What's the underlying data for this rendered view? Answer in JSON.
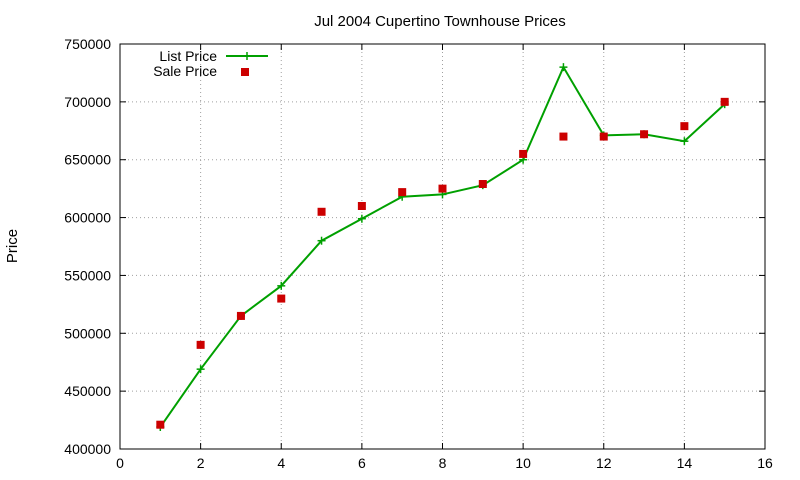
{
  "chart_data": {
    "type": "line",
    "title": "Jul 2004 Cupertino Townhouse Prices",
    "xlabel": "",
    "ylabel": "Price",
    "xlim": [
      0,
      16
    ],
    "ylim": [
      400000,
      750000
    ],
    "x_ticks": [
      "0",
      "2",
      "4",
      "6",
      "8",
      "10",
      "12",
      "14",
      "16"
    ],
    "y_ticks": [
      "400000",
      "450000",
      "500000",
      "550000",
      "600000",
      "650000",
      "700000",
      "750000"
    ],
    "grid": true,
    "legend_position": "top-left",
    "series": [
      {
        "name": "List Price",
        "style": "line+cross",
        "color": "#00a000",
        "x": [
          1,
          2,
          3,
          4,
          5,
          6,
          7,
          8,
          9,
          10,
          11,
          12,
          13,
          14,
          15
        ],
        "y": [
          419000,
          469000,
          515000,
          541000,
          580000,
          599000,
          618000,
          620000,
          628000,
          650000,
          730000,
          671000,
          672000,
          666000,
          698000
        ]
      },
      {
        "name": "Sale Price",
        "style": "square",
        "color": "#cc0000",
        "x": [
          1,
          2,
          3,
          4,
          5,
          6,
          7,
          8,
          9,
          10,
          11,
          12,
          13,
          14,
          15
        ],
        "y": [
          421000,
          490000,
          515000,
          530000,
          605000,
          610000,
          622000,
          625000,
          629000,
          655000,
          670000,
          670000,
          672000,
          679000,
          700000
        ]
      }
    ]
  }
}
